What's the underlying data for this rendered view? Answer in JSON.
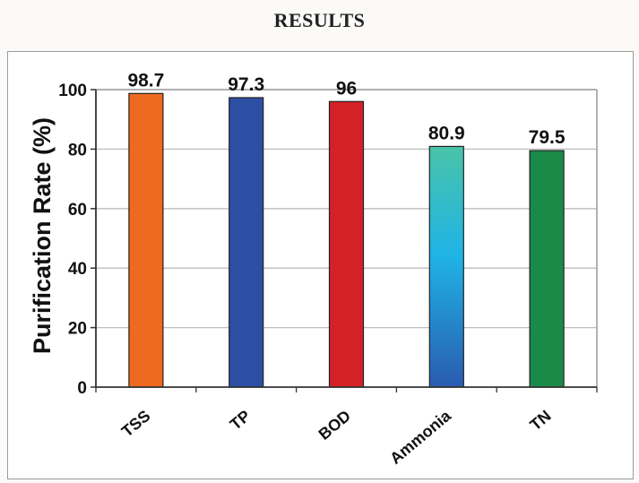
{
  "page": {
    "title": "RESULTS"
  },
  "chart_data": {
    "type": "bar",
    "categories": [
      "TSS",
      "TP",
      "BOD",
      "Ammonia",
      "TN"
    ],
    "values": [
      98.7,
      97.3,
      96,
      80.9,
      79.5
    ],
    "data_labels": [
      "98.7",
      "97.3",
      "96",
      "80.9",
      "79.5"
    ],
    "colors": [
      "#ee6a1e",
      "#2d4fa3",
      "#d42127",
      "gradient-teal-blue",
      "#1a8a48"
    ],
    "title": "RESULTS",
    "xlabel": "",
    "ylabel": "Purification Rate (%)",
    "ylim": [
      0,
      100
    ],
    "yticks": [
      0,
      20,
      40,
      60,
      80,
      100
    ],
    "grid": true,
    "legend": "none"
  }
}
